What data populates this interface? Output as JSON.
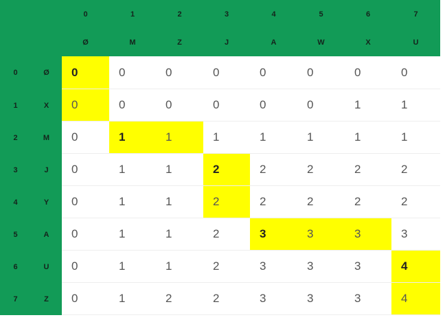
{
  "table": {
    "col_indices": [
      "0",
      "1",
      "2",
      "3",
      "4",
      "5",
      "6",
      "7"
    ],
    "col_chars": [
      "Ø",
      "M",
      "Z",
      "J",
      "A",
      "W",
      "X",
      "U"
    ],
    "row_indices": [
      "0",
      "1",
      "2",
      "3",
      "4",
      "5",
      "6",
      "7"
    ],
    "row_chars": [
      "Ø",
      "X",
      "M",
      "J",
      "Y",
      "A",
      "U",
      "Z"
    ],
    "cells": [
      [
        "0",
        "0",
        "0",
        "0",
        "0",
        "0",
        "0",
        "0"
      ],
      [
        "0",
        "0",
        "0",
        "0",
        "0",
        "0",
        "1",
        "1"
      ],
      [
        "0",
        "1",
        "1",
        "1",
        "1",
        "1",
        "1",
        "1"
      ],
      [
        "0",
        "1",
        "1",
        "2",
        "2",
        "2",
        "2",
        "2"
      ],
      [
        "0",
        "1",
        "1",
        "2",
        "2",
        "2",
        "2",
        "2"
      ],
      [
        "0",
        "1",
        "1",
        "2",
        "3",
        "3",
        "3",
        "3"
      ],
      [
        "0",
        "1",
        "1",
        "2",
        "3",
        "3",
        "3",
        "4"
      ],
      [
        "0",
        "1",
        "2",
        "2",
        "3",
        "3",
        "3",
        "4"
      ]
    ],
    "highlight": [
      [
        0,
        0
      ],
      [
        1,
        0
      ],
      [
        2,
        1
      ],
      [
        2,
        2
      ],
      [
        3,
        3
      ],
      [
        4,
        3
      ],
      [
        5,
        4
      ],
      [
        5,
        5
      ],
      [
        5,
        6
      ],
      [
        6,
        7
      ],
      [
        7,
        7
      ]
    ],
    "bold": [
      [
        0,
        0
      ],
      [
        2,
        1
      ],
      [
        3,
        3
      ],
      [
        5,
        4
      ],
      [
        6,
        7
      ]
    ],
    "colors": {
      "header_bg": "#129b57",
      "highlight": "#ffff00",
      "value_text": "#555555"
    }
  }
}
